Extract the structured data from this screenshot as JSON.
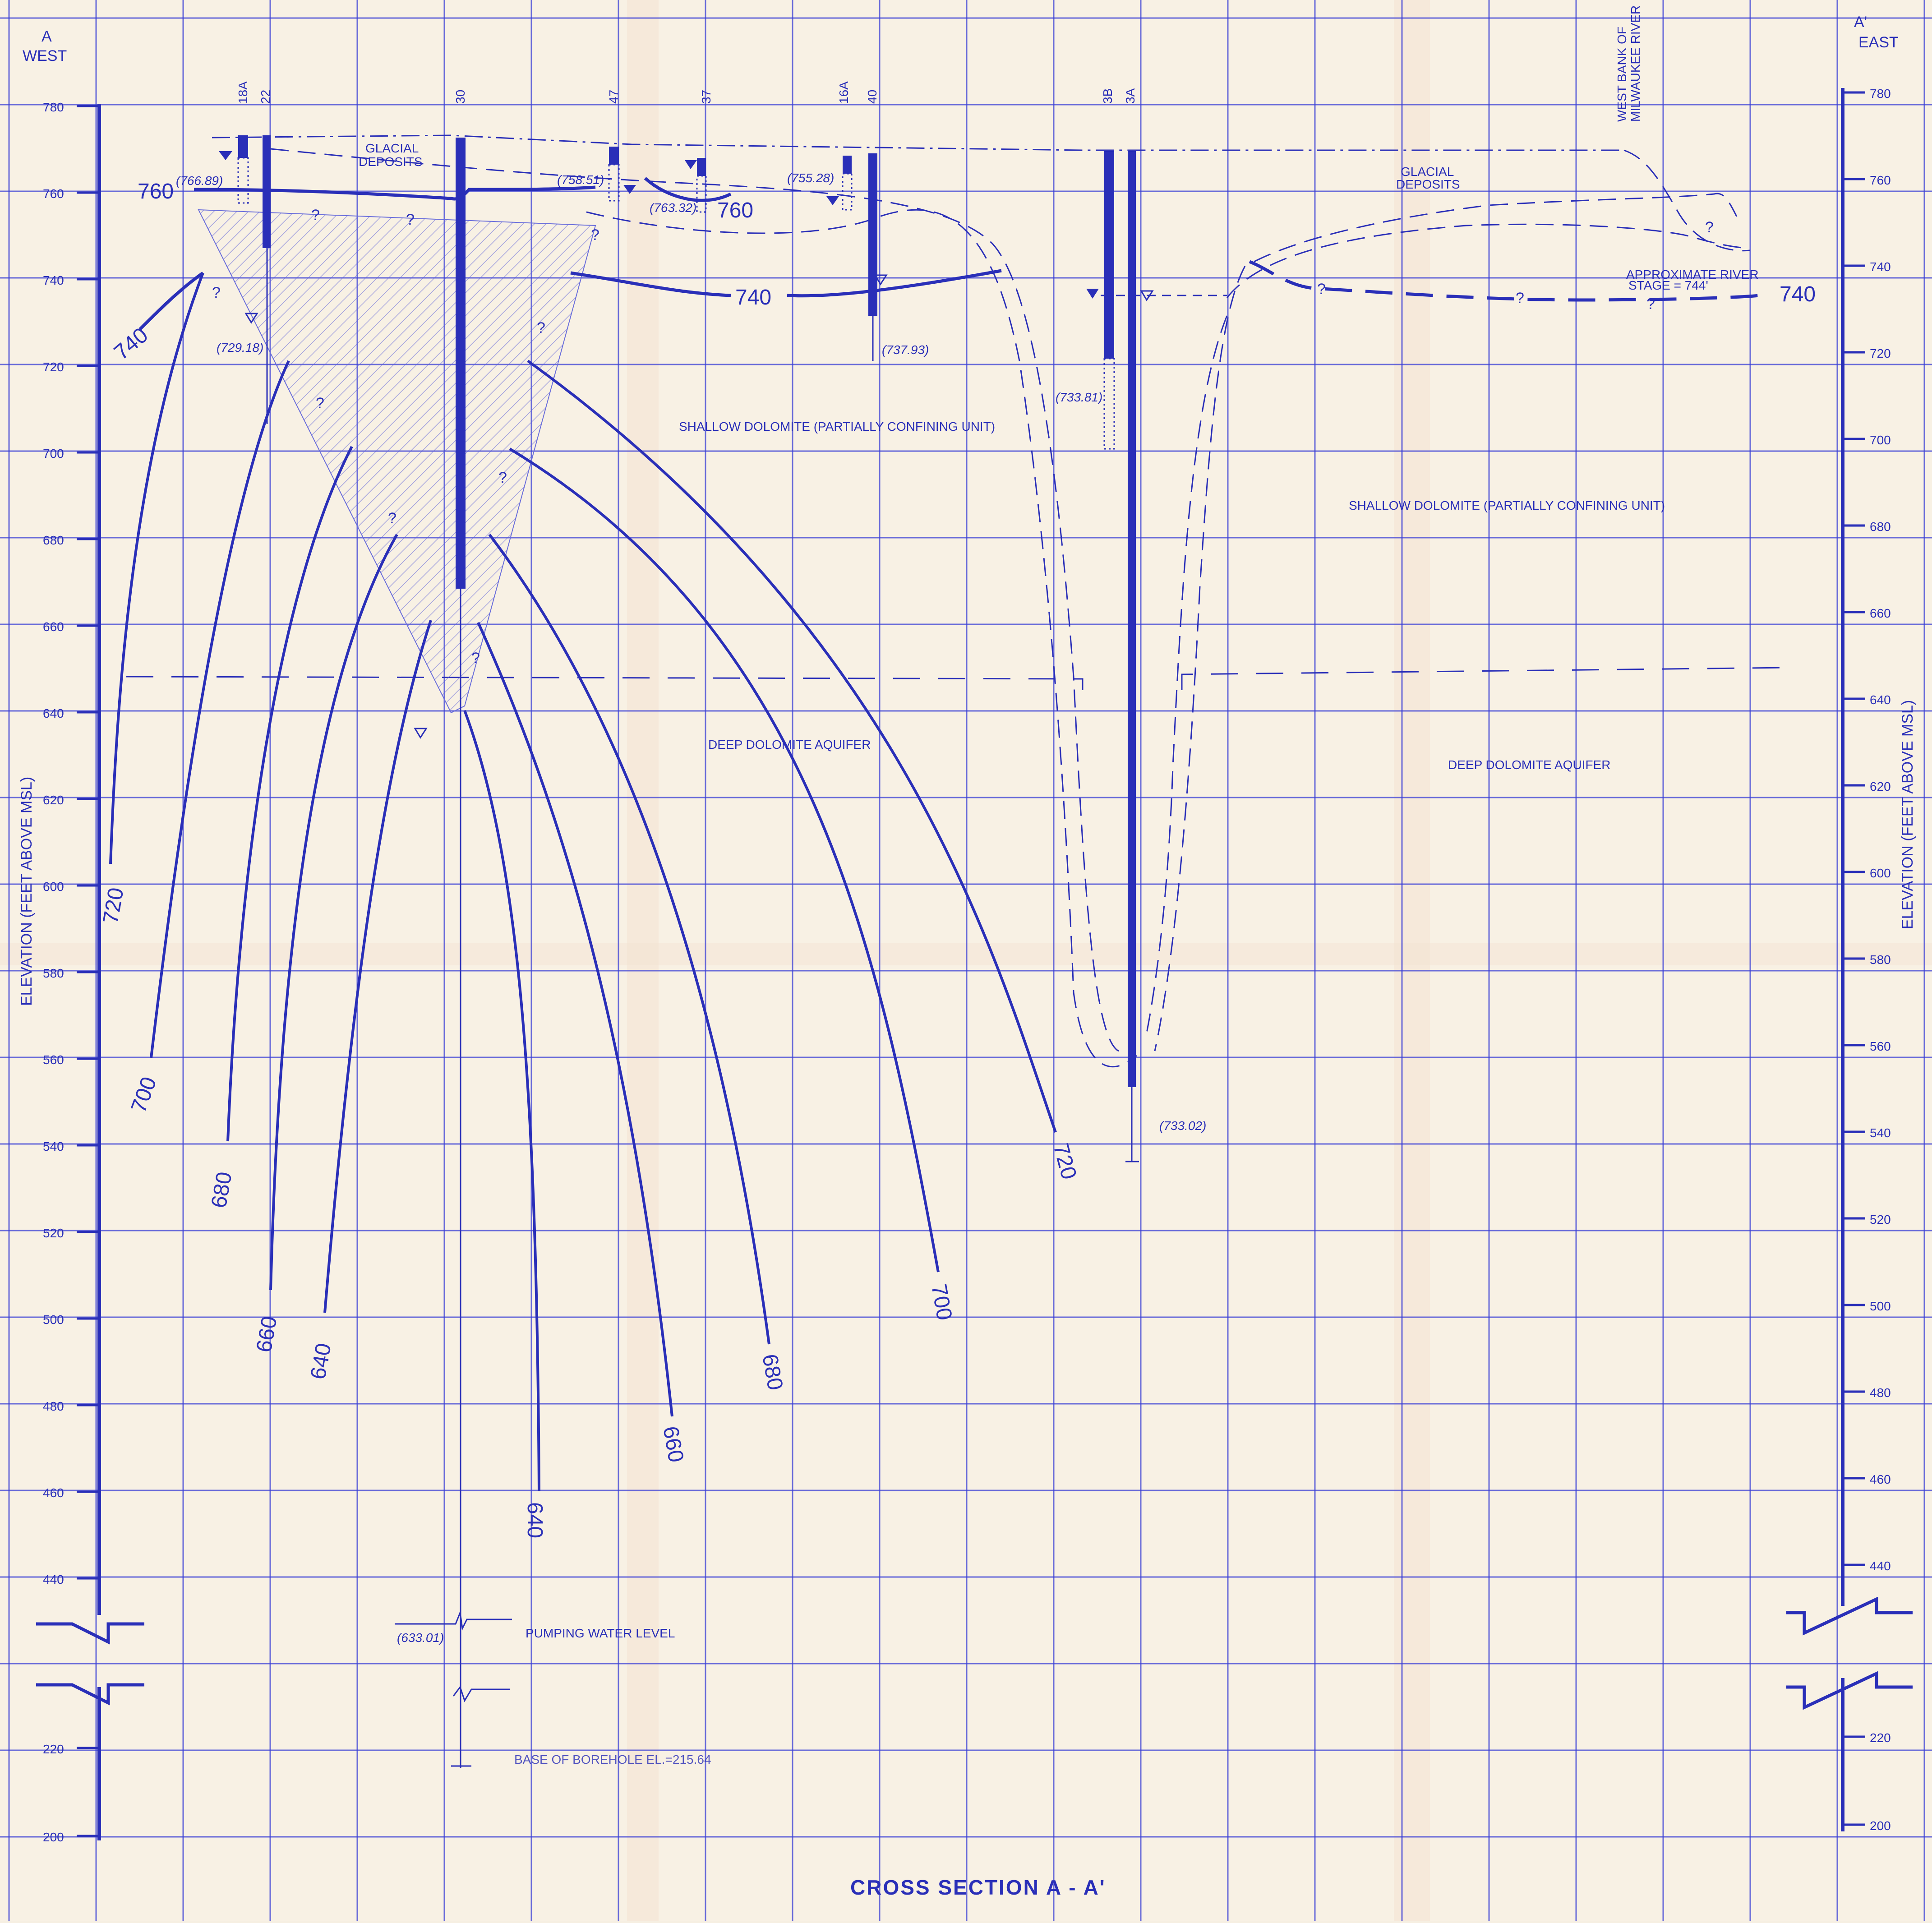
{
  "title": "CROSS SECTION A - A'",
  "ends": {
    "west_letter": "A",
    "west_word": "WEST",
    "east_letter": "A'",
    "east_word": "EAST"
  },
  "axis_label": "ELEVATION (FEET ABOVE MSL)",
  "ticks_upper": [
    "780",
    "760",
    "740",
    "720",
    "700",
    "680",
    "660",
    "640",
    "620",
    "600",
    "580",
    "560",
    "540",
    "520",
    "500",
    "480",
    "460",
    "440"
  ],
  "ticks_lower": [
    "220",
    "200"
  ],
  "wells": [
    "18A",
    "22",
    "30",
    "47",
    "37",
    "16A",
    "40",
    "3B",
    "3A"
  ],
  "river_bank_label_1": "WEST BANK OF",
  "river_bank_label_2": "MILWAUKEE RIVER",
  "units": {
    "glacial_1": "GLACIAL",
    "glacial_2": "DEPOSITS",
    "glacial_east_1": "GLACIAL",
    "glacial_east_2": "DEPOSITS",
    "shallow_west": "SHALLOW DOLOMITE (PARTIALLY CONFINING UNIT)",
    "shallow_east": "SHALLOW DOLOMITE (PARTIALLY CONFINING UNIT)",
    "deep_west": "DEEP DOLOMITE AQUIFER",
    "deep_east": "DEEP DOLOMITE AQUIFER"
  },
  "river_stage_1": "APPROXIMATE RIVER",
  "river_stage_2": "STAGE = 744'",
  "water_levels": [
    "(766.89)",
    "(758.51)",
    "(763.32)",
    "(755.28)",
    "(729.18)",
    "(737.93)",
    "(733.81)",
    "(733.02)",
    "(633.01)"
  ],
  "contour_labels": {
    "c760_left": "760",
    "c760_mid": "760",
    "c740_left": "740",
    "c740_mid": "740",
    "c740_right": "740",
    "w720": "720",
    "w700": "700",
    "w680": "680",
    "w660": "660",
    "w640": "640",
    "e640": "640",
    "e660": "660",
    "e680": "680",
    "e700": "700",
    "e720": "720"
  },
  "question_mark": "?",
  "pumping_label": "PUMPING WATER LEVEL",
  "base_label": "BASE OF BOREHOLE EL.=215.64",
  "colors": {
    "ink": "#2a2fb8",
    "grid": "#3a3fd6",
    "paper": "#f8f1e4"
  }
}
